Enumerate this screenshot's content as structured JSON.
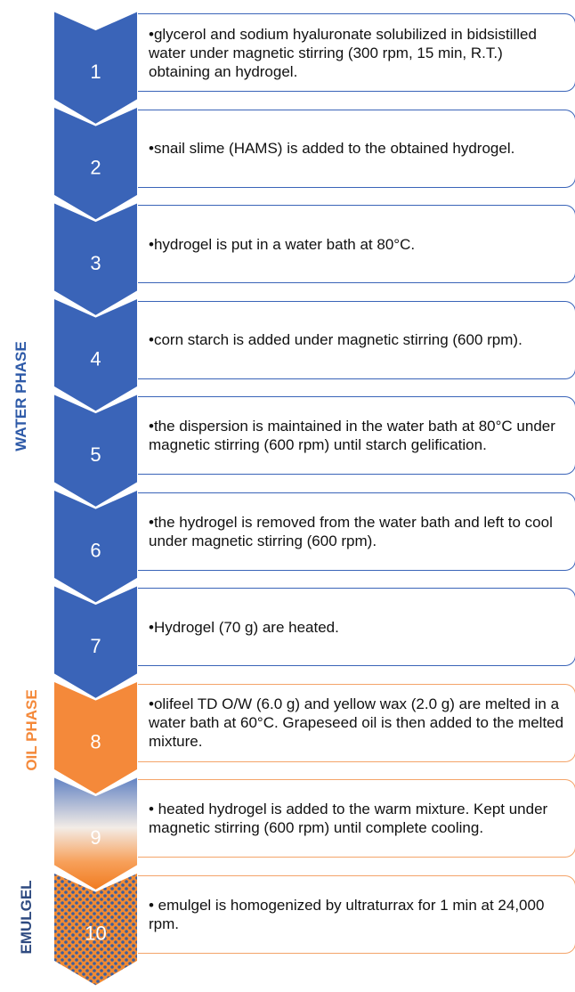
{
  "phases": [
    {
      "label": "WATER PHASE"
    },
    {
      "label": "OIL PHASE"
    },
    {
      "label": "EMULGEL"
    }
  ],
  "steps": [
    {
      "number": 1,
      "text": "•glycerol and sodium hyaluronate solubilized in bidsistilled water under magnetic stirring (300 rpm, 15 min, R.T.) obtaining an hydrogel."
    },
    {
      "number": 2,
      "text": "•snail slime (HAMS) is added to the obtained hydrogel."
    },
    {
      "number": 3,
      "text": "•hydrogel is put in a water bath at 80°C."
    },
    {
      "number": 4,
      "text": "•corn starch is added under magnetic stirring (600 rpm)."
    },
    {
      "number": 5,
      "text": "•the dispersion is maintained in the water bath at 80°C under magnetic stirring (600 rpm) until starch gelification."
    },
    {
      "number": 6,
      "text": "•the hydrogel is removed from the water bath and left to cool under magnetic stirring (600 rpm)."
    },
    {
      "number": 7,
      "text": "•Hydrogel (70 g) are heated."
    },
    {
      "number": 8,
      "text": "•olifeel TD O/W (6.0 g) and yellow wax (2.0 g) are melted in a water bath at 60°C. Grapeseed oil is then added to the melted mixture."
    },
    {
      "number": 9,
      "text": "• heated hydrogel is added to the warm mixture. Kept under magnetic stirring (600 rpm) until complete cooling."
    },
    {
      "number": 10,
      "text": "• emulgel is homogenized by ultraturrax for 1 min at 24,000 rpm."
    }
  ]
}
